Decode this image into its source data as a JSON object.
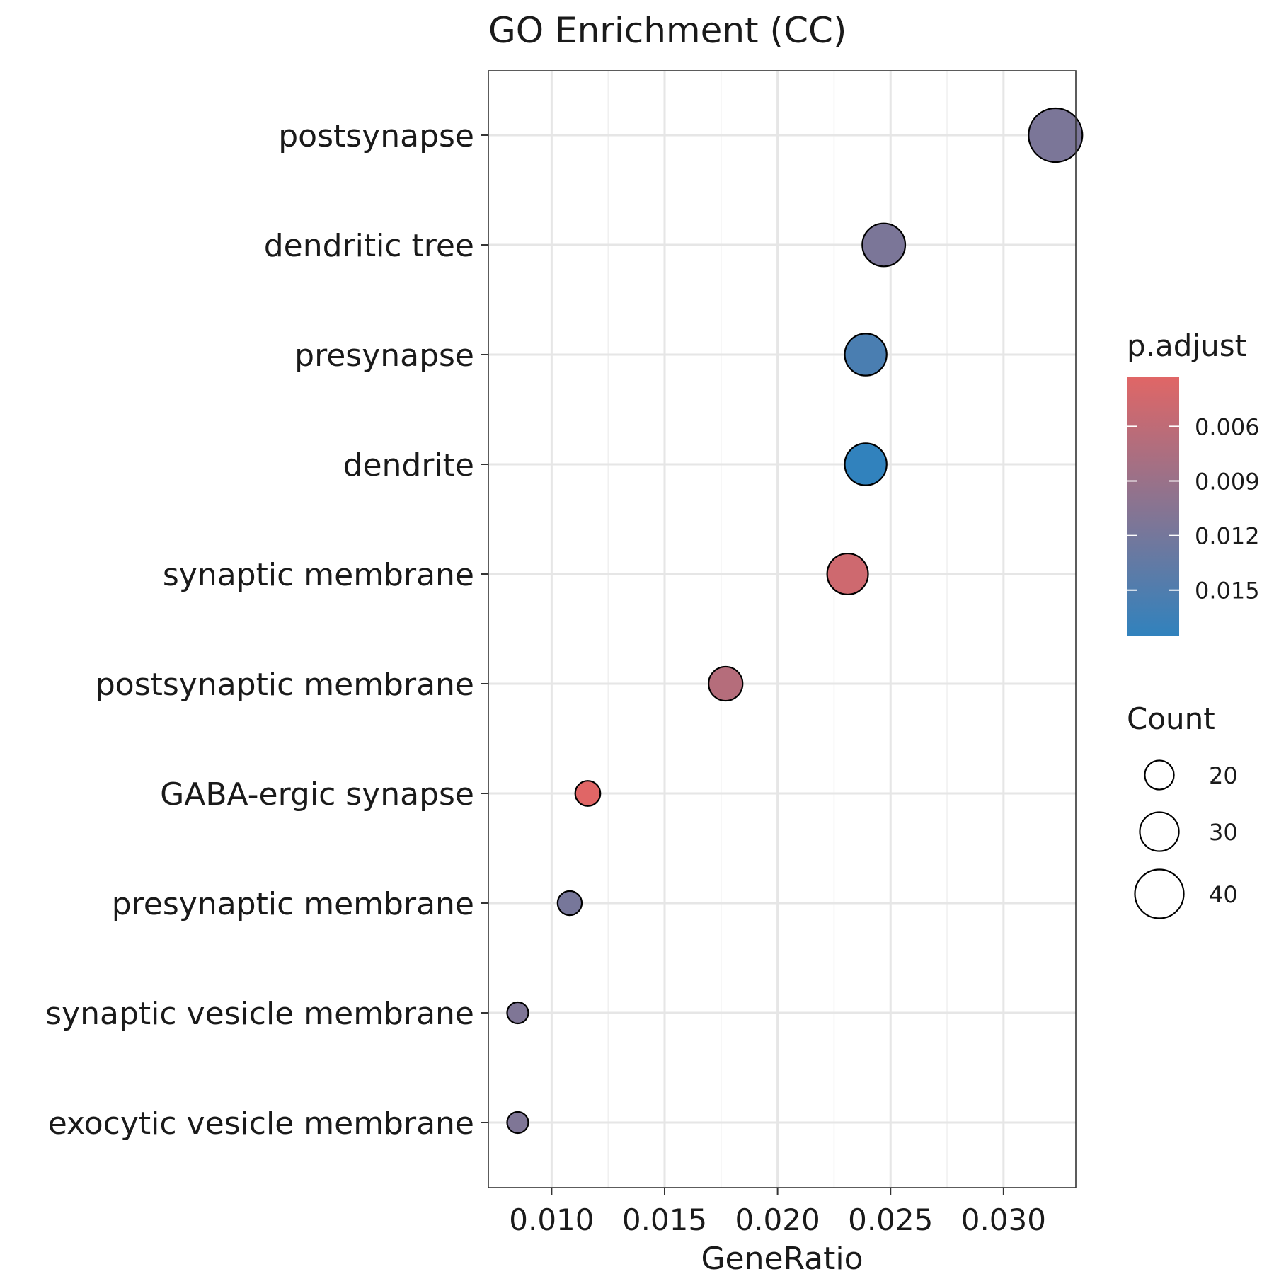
{
  "chart_data": {
    "type": "scatter",
    "title": "GO Enrichment (CC)",
    "xlabel": "GeneRatio",
    "ylabel": "",
    "xlim": [
      0.0072,
      0.0332
    ],
    "x_ticks": [
      0.01,
      0.015,
      0.02,
      0.025,
      0.03
    ],
    "x_tick_labels": [
      "0.010",
      "0.015",
      "0.020",
      "0.025",
      "0.030"
    ],
    "grid": true,
    "categories": [
      "postsynapse",
      "dendritic tree",
      "presynapse",
      "dendrite",
      "synaptic membrane",
      "postsynaptic membrane",
      "GABA-ergic synapse",
      "presynaptic membrane",
      "synaptic vesicle membrane",
      "exocytic vesicle membrane"
    ],
    "points": [
      {
        "term": "postsynapse",
        "gene_ratio": 0.0323,
        "count": 45,
        "p_adjust": 0.0115
      },
      {
        "term": "dendritic tree",
        "gene_ratio": 0.0247,
        "count": 34,
        "p_adjust": 0.0115
      },
      {
        "term": "presynapse",
        "gene_ratio": 0.0239,
        "count": 33,
        "p_adjust": 0.0155
      },
      {
        "term": "dendrite",
        "gene_ratio": 0.0239,
        "count": 33,
        "p_adjust": 0.0175
      },
      {
        "term": "synaptic membrane",
        "gene_ratio": 0.0231,
        "count": 32,
        "p_adjust": 0.0048
      },
      {
        "term": "postsynaptic membrane",
        "gene_ratio": 0.0177,
        "count": 25,
        "p_adjust": 0.0068
      },
      {
        "term": "GABA-ergic synapse",
        "gene_ratio": 0.0116,
        "count": 16,
        "p_adjust": 0.0033
      },
      {
        "term": "presynaptic membrane",
        "gene_ratio": 0.0108,
        "count": 15,
        "p_adjust": 0.0118
      },
      {
        "term": "synaptic vesicle membrane",
        "gene_ratio": 0.0085,
        "count": 12,
        "p_adjust": 0.0112
      },
      {
        "term": "exocytic vesicle membrane",
        "gene_ratio": 0.0085,
        "count": 12,
        "p_adjust": 0.0112
      }
    ],
    "color_legend": {
      "title": "p.adjust",
      "min": 0.0033,
      "max": 0.0175,
      "low_color": "#e06666",
      "high_color": "#3182bd",
      "ticks": [
        0.006,
        0.009,
        0.012,
        0.015
      ],
      "tick_labels": [
        "0.006",
        "0.009",
        "0.012",
        "0.015"
      ]
    },
    "size_legend": {
      "title": "Count",
      "values": [
        20,
        30,
        40
      ],
      "labels": [
        "20",
        "30",
        "40"
      ]
    },
    "legend_position": "right"
  }
}
